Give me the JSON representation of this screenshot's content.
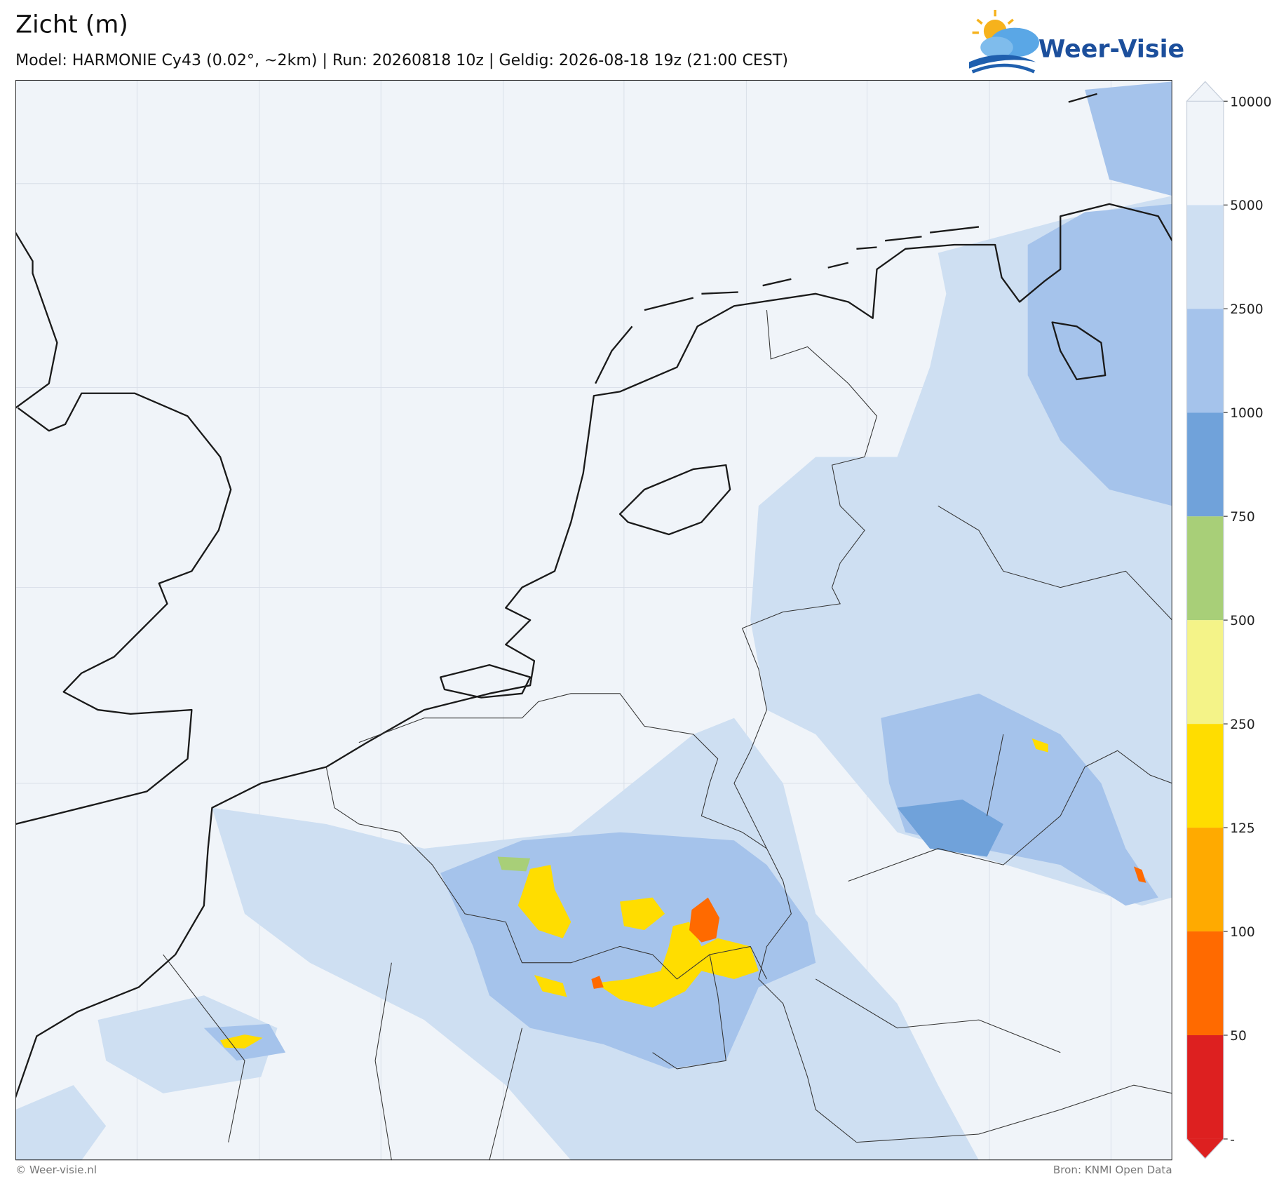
{
  "header": {
    "title": "Zicht (m)",
    "subtitle": "Model: HARMONIE Cy43 (0.02°, ~2km)  |  Run: 20260818 10z  |  Geldig: 2026-08-18 19z (21:00 CEST)",
    "logo": "Weer-Visie"
  },
  "colorbar": {
    "levels": [
      {
        "value": 0,
        "label": "-"
      },
      50,
      100,
      125,
      250,
      500,
      750,
      1000,
      2500,
      5000,
      10000
    ],
    "colors": [
      "#dd2020",
      "#ff6a00",
      "#ffaa00",
      "#ffdd00",
      "#f4f388",
      "#a8cf78",
      "#70a2da",
      "#a5c3eb",
      "#cedff2",
      "#f0f4f9"
    ]
  },
  "footer": {
    "left": "© Weer-visie.nl",
    "right": "Bron: KNMI Open Data"
  }
}
